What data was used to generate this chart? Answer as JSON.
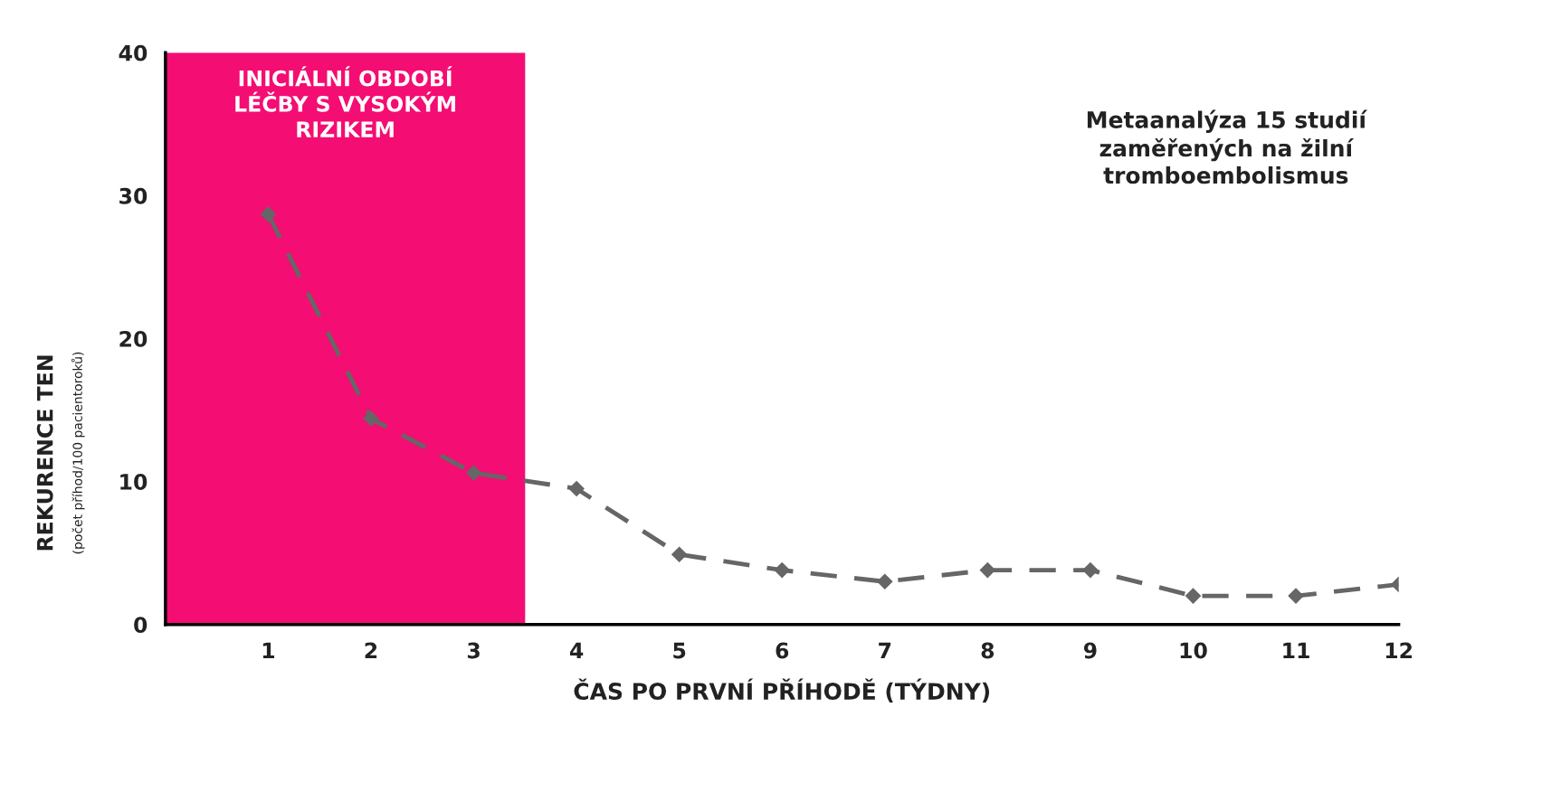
{
  "chart_data": {
    "type": "line",
    "xlabel": "ČAS PO PRVNÍ PŘÍHODĚ (TÝDNY)",
    "ylabel": "REKURENCE TEN\n(počet příhod/100 pacientoroků)",
    "x": [
      1,
      2,
      3,
      4,
      5,
      6,
      7,
      8,
      9,
      10,
      11,
      12
    ],
    "series": [
      {
        "color": "#666666",
        "values": [
          28.7,
          14.4,
          10.6,
          9.5,
          4.9,
          3.8,
          3.0,
          3.8,
          3.8,
          2.0,
          2.0,
          2.8
        ]
      }
    ],
    "xlim": [
      0,
      12
    ],
    "xticks": [
      1,
      2,
      3,
      4,
      5,
      6,
      7,
      8,
      9,
      10,
      11,
      12
    ],
    "ylim": [
      0,
      40
    ],
    "yticks": [
      0,
      10,
      20,
      30,
      40
    ],
    "bands": [
      {
        "axis": "x",
        "from": 0,
        "to": 3.5,
        "label": "INICIÁLNÍ OBDOBÍ\nLÉČBY S VYSOKÝM\nRIZIKEM",
        "color": "#f40d72"
      }
    ],
    "annotations": [
      "Metaanalýza 15 studií\nzaměřených na žilní\ntromboembolismus"
    ],
    "marker": "diamond",
    "line_style": "dashed",
    "grid": false,
    "legend": false
  }
}
